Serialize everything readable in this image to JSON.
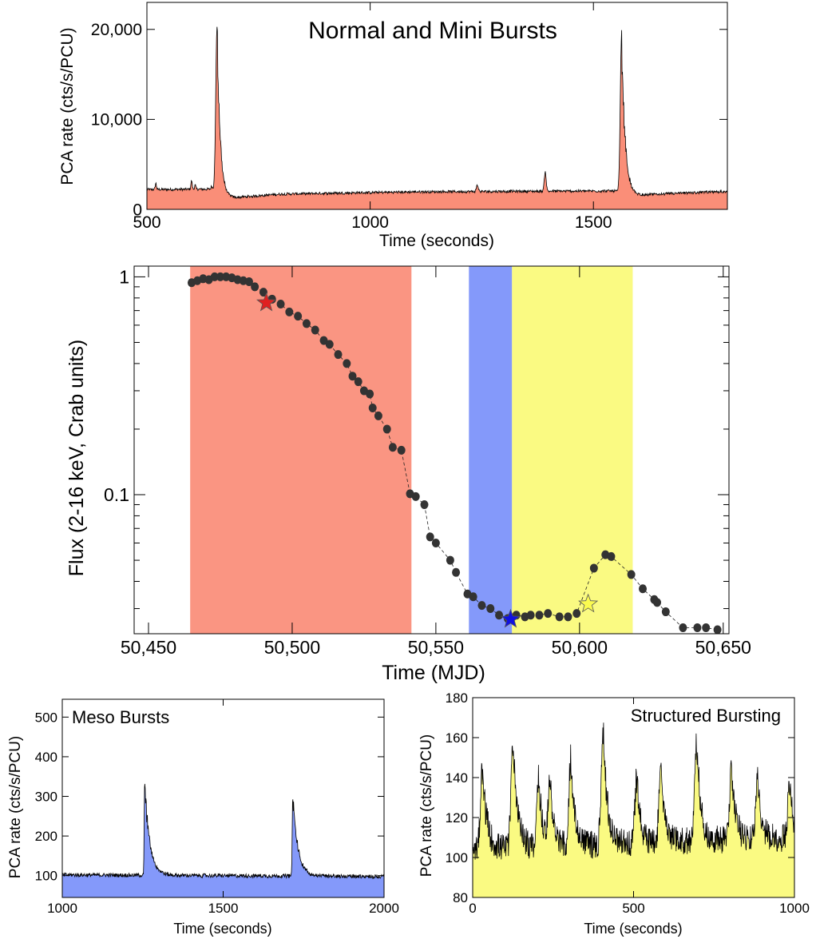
{
  "chart_data": [
    {
      "id": "normal",
      "type": "area",
      "title": "Normal and Mini Bursts",
      "xlabel": "Time (seconds)",
      "ylabel": "PCA rate (cts/s/PCU)",
      "xlim": [
        500,
        1800
      ],
      "ylim": [
        0,
        23000
      ],
      "xticks": [
        {
          "v": 500,
          "label": "500"
        },
        {
          "v": 1000,
          "label": "1000"
        },
        {
          "v": 1500,
          "label": "1500"
        }
      ],
      "yticks": [
        {
          "v": 0,
          "label": "0"
        },
        {
          "v": 10000,
          "label": "10,000"
        },
        {
          "v": 20000,
          "label": "20,000"
        }
      ],
      "fill_color": "#fa8e78",
      "baseline_segments": [
        [
          500,
          2200
        ],
        [
          650,
          2250
        ],
        [
          670,
          1200
        ],
        [
          800,
          1700
        ],
        [
          1100,
          1950
        ],
        [
          1300,
          2000
        ],
        [
          1550,
          2050
        ],
        [
          1580,
          1500
        ],
        [
          1650,
          1700
        ],
        [
          1800,
          2000
        ]
      ],
      "noise": 150,
      "spikes": [
        {
          "x": 520,
          "peak": 2900,
          "w": 2
        },
        {
          "x": 600,
          "peak": 3200,
          "w": 2
        },
        {
          "x": 608,
          "peak": 2700,
          "w": 2
        },
        {
          "x": 645,
          "peak": 2600,
          "w": 2
        },
        {
          "x": 1240,
          "peak": 2700,
          "w": 3
        },
        {
          "x": 1392,
          "peak": 4200,
          "w": 3
        }
      ],
      "bursts": [
        {
          "x": 657,
          "peak": 20300,
          "rise": 4,
          "decay": 7
        },
        {
          "x": 1563,
          "peak": 19100,
          "rise": 4,
          "decay": 8
        }
      ]
    },
    {
      "id": "flux",
      "type": "scatter",
      "xlabel": "Time (MJD)",
      "ylabel": "Flux (2-16 keV, Crab units)",
      "xlim": [
        50445,
        50652
      ],
      "ylim": [
        0.023,
        1.12
      ],
      "yscale": "log",
      "xticks": [
        {
          "v": 50450,
          "label": "50,450"
        },
        {
          "v": 50500,
          "label": "50,500"
        },
        {
          "v": 50550,
          "label": "50,550"
        },
        {
          "v": 50600,
          "label": "50,600"
        },
        {
          "v": 50650,
          "label": "50,650"
        }
      ],
      "yticks": [
        {
          "v": 0.1,
          "label": "0.1"
        },
        {
          "v": 1,
          "label": "1"
        }
      ],
      "bands": [
        {
          "x0": 50464.5,
          "x1": 50541.5,
          "color": "#fa9582"
        },
        {
          "x0": 50561.5,
          "x1": 50576.5,
          "color": "#8499fa"
        },
        {
          "x0": 50576.5,
          "x1": 50618.5,
          "color": "#fafa82"
        }
      ],
      "x": [
        50465,
        50467,
        50469,
        50471,
        50473,
        50475,
        50477,
        50479,
        50481,
        50483,
        50485,
        50487,
        50490,
        50493,
        50496,
        50499,
        50502,
        50505,
        50508,
        50511,
        50513,
        50516,
        50519,
        50521,
        50523,
        50525,
        50527,
        50528,
        50530,
        50533,
        50535,
        50538,
        50541,
        50543,
        50546,
        50548,
        50550,
        50555,
        50557,
        50561,
        50563,
        50566,
        50569,
        50572,
        50575,
        50578,
        50581,
        50583,
        50586,
        50589,
        50593,
        50596,
        50599,
        50605,
        50609,
        50611,
        50618,
        50622,
        50626,
        50627,
        50630,
        50636,
        50641,
        50644,
        50648
      ],
      "y": [
        0.94,
        0.96,
        0.98,
        0.97,
        1.0,
        1.0,
        1.0,
        0.99,
        0.97,
        0.96,
        0.95,
        0.9,
        0.85,
        0.79,
        0.75,
        0.69,
        0.66,
        0.61,
        0.57,
        0.51,
        0.49,
        0.44,
        0.4,
        0.35,
        0.33,
        0.3,
        0.29,
        0.25,
        0.23,
        0.2,
        0.165,
        0.16,
        0.101,
        0.098,
        0.09,
        0.064,
        0.06,
        0.05,
        0.044,
        0.035,
        0.034,
        0.031,
        0.03,
        0.028,
        0.027,
        0.028,
        0.0275,
        0.028,
        0.028,
        0.0285,
        0.0275,
        0.0275,
        0.0285,
        0.046,
        0.053,
        0.052,
        0.043,
        0.037,
        0.033,
        0.032,
        0.029,
        0.0245,
        0.0245,
        0.0245,
        0.024
      ],
      "stars": [
        {
          "x": 50491,
          "y": 0.76,
          "color": "#e02020"
        },
        {
          "x": 50576,
          "y": 0.0268,
          "color": "#1010e0"
        },
        {
          "x": 50603,
          "y": 0.0315,
          "color": "#fafa50"
        }
      ]
    },
    {
      "id": "meso",
      "type": "area",
      "title": "Meso Bursts",
      "xlabel": "Time (seconds)",
      "ylabel": "PCA rate (cts/s/PCU)",
      "xlim": [
        1000,
        2000
      ],
      "ylim": [
        45,
        545
      ],
      "xticks": [
        {
          "v": 1000,
          "label": "1000"
        },
        {
          "v": 1500,
          "label": "1500"
        },
        {
          "v": 2000,
          "label": "2000"
        }
      ],
      "yticks": [
        {
          "v": 100,
          "label": "100"
        },
        {
          "v": 200,
          "label": "200"
        },
        {
          "v": 300,
          "label": "300"
        },
        {
          "v": 400,
          "label": "400"
        },
        {
          "v": 500,
          "label": "500"
        }
      ],
      "fill_color": "#8499fa",
      "baseline_segments": [
        [
          1000,
          102
        ],
        [
          2000,
          98
        ]
      ],
      "noise": 5,
      "spikes": [],
      "bursts": [
        {
          "x": 1256,
          "peak": 330,
          "rise": 2,
          "decay": 16
        },
        {
          "x": 1716,
          "peak": 300,
          "rise": 2,
          "decay": 16
        }
      ]
    },
    {
      "id": "structured",
      "type": "area",
      "title": "Structured Bursting",
      "xlabel": "Time (seconds)",
      "ylabel": "PCA rate (cts/s/PCU)",
      "xlim": [
        0,
        1000
      ],
      "ylim": [
        80,
        180
      ],
      "xticks": [
        {
          "v": 0,
          "label": "0"
        },
        {
          "v": 500,
          "label": "500"
        },
        {
          "v": 1000,
          "label": "1000"
        }
      ],
      "yticks": [
        {
          "v": 80,
          "label": "80"
        },
        {
          "v": 100,
          "label": "100"
        },
        {
          "v": 120,
          "label": "120"
        },
        {
          "v": 140,
          "label": "140"
        },
        {
          "v": 160,
          "label": "160"
        },
        {
          "v": 180,
          "label": "180"
        }
      ],
      "fill_color": "#fafa82",
      "baseline_segments": [
        [
          0,
          104
        ],
        [
          1000,
          110
        ]
      ],
      "noise": 7,
      "spikes": [],
      "bursts": [
        {
          "x": 30,
          "peak": 145,
          "rise": 8,
          "decay": 14
        },
        {
          "x": 125,
          "peak": 158,
          "rise": 8,
          "decay": 14
        },
        {
          "x": 205,
          "peak": 140,
          "rise": 8,
          "decay": 12
        },
        {
          "x": 240,
          "peak": 138,
          "rise": 8,
          "decay": 12
        },
        {
          "x": 305,
          "peak": 150,
          "rise": 8,
          "decay": 12
        },
        {
          "x": 405,
          "peak": 163,
          "rise": 8,
          "decay": 14
        },
        {
          "x": 510,
          "peak": 140,
          "rise": 8,
          "decay": 12
        },
        {
          "x": 585,
          "peak": 150,
          "rise": 8,
          "decay": 12
        },
        {
          "x": 695,
          "peak": 157,
          "rise": 8,
          "decay": 14
        },
        {
          "x": 805,
          "peak": 147,
          "rise": 8,
          "decay": 12
        },
        {
          "x": 885,
          "peak": 140,
          "rise": 8,
          "decay": 12
        },
        {
          "x": 985,
          "peak": 138,
          "rise": 8,
          "decay": 12
        }
      ]
    }
  ]
}
